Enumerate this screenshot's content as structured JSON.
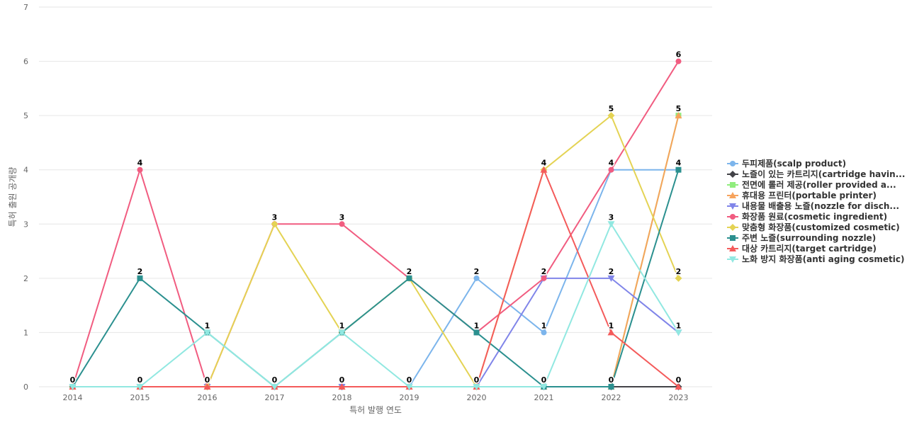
{
  "chart_data": {
    "type": "line",
    "xlabel": "특허 발행 연도",
    "ylabel": "특허 출원 공개량",
    "ylim": [
      0,
      7
    ],
    "yticks": [
      0,
      1,
      2,
      3,
      4,
      5,
      6,
      7
    ],
    "grid": true,
    "legend_position": "right",
    "categories": [
      "2014",
      "2015",
      "2016",
      "2017",
      "2018",
      "2019",
      "2020",
      "2021",
      "2022",
      "2023"
    ],
    "series": [
      {
        "name": "두피제품(scalp product)",
        "color": "#7cb5ec",
        "marker": "circle",
        "values": [
          0,
          0,
          0,
          0,
          0,
          0,
          2,
          1,
          4,
          4
        ]
      },
      {
        "name": "노즐이 있는 카트리지(cartridge havin...",
        "color": "#434348",
        "marker": "diamond",
        "values": [
          0,
          0,
          0,
          0,
          0,
          0,
          0,
          0,
          0,
          0
        ]
      },
      {
        "name": "전면에 롤러 제공(roller provided a...",
        "color": "#90ed7d",
        "marker": "square",
        "values": [
          0,
          0,
          0,
          0,
          0,
          0,
          0,
          0,
          0,
          5
        ]
      },
      {
        "name": "휴대용 프린터(portable printer)",
        "color": "#f7a35c",
        "marker": "triangle",
        "values": [
          0,
          0,
          0,
          0,
          0,
          0,
          0,
          0,
          0,
          5
        ]
      },
      {
        "name": "내용물 배출용 노즐(nozzle for disch...",
        "color": "#8085e9",
        "marker": "triangle-down",
        "values": [
          0,
          0,
          0,
          0,
          0,
          0,
          0,
          2,
          2,
          1
        ]
      },
      {
        "name": "화장품 원료(cosmetic ingredient)",
        "color": "#f15c80",
        "marker": "circle",
        "values": [
          0,
          4,
          0,
          3,
          3,
          2,
          1,
          2,
          4,
          6
        ]
      },
      {
        "name": "맞춤형 화장품(customized cosmetic)",
        "color": "#e4d354",
        "marker": "diamond",
        "values": [
          0,
          0,
          0,
          3,
          1,
          2,
          0,
          4,
          5,
          2
        ]
      },
      {
        "name": "주변 노즐(surrounding nozzle)",
        "color": "#2b908f",
        "marker": "square",
        "values": [
          0,
          2,
          1,
          0,
          1,
          2,
          1,
          0,
          0,
          4
        ]
      },
      {
        "name": "대상 카트리지(target cartridge)",
        "color": "#f45b5b",
        "marker": "triangle",
        "values": [
          0,
          0,
          0,
          0,
          0,
          0,
          0,
          4,
          1,
          0
        ]
      },
      {
        "name": "노화 방지 화장품(anti aging cosmetic)",
        "color": "#91e8e1",
        "marker": "triangle-down",
        "values": [
          0,
          0,
          1,
          0,
          1,
          0,
          0,
          0,
          3,
          1
        ]
      }
    ],
    "data_labels": [
      {
        "x": "2014",
        "y": 0,
        "text": "0"
      },
      {
        "x": "2015",
        "y": 4,
        "text": "4"
      },
      {
        "x": "2015",
        "y": 2,
        "text": "2"
      },
      {
        "x": "2015",
        "y": 0,
        "text": "0"
      },
      {
        "x": "2016",
        "y": 1,
        "text": "1"
      },
      {
        "x": "2016",
        "y": 0,
        "text": "0"
      },
      {
        "x": "2017",
        "y": 3,
        "text": "3"
      },
      {
        "x": "2017",
        "y": 0,
        "text": "0"
      },
      {
        "x": "2018",
        "y": 3,
        "text": "3"
      },
      {
        "x": "2018",
        "y": 1,
        "text": "1"
      },
      {
        "x": "2018",
        "y": 0,
        "text": "0"
      },
      {
        "x": "2019",
        "y": 2,
        "text": "2"
      },
      {
        "x": "2019",
        "y": 0,
        "text": "0"
      },
      {
        "x": "2020",
        "y": 2,
        "text": "2"
      },
      {
        "x": "2020",
        "y": 1,
        "text": "1"
      },
      {
        "x": "2020",
        "y": 0,
        "text": "0"
      },
      {
        "x": "2021",
        "y": 4,
        "text": "4"
      },
      {
        "x": "2021",
        "y": 2,
        "text": "2"
      },
      {
        "x": "2021",
        "y": 1,
        "text": "1"
      },
      {
        "x": "2021",
        "y": 0,
        "text": "0"
      },
      {
        "x": "2022",
        "y": 5,
        "text": "5"
      },
      {
        "x": "2022",
        "y": 4,
        "text": "4"
      },
      {
        "x": "2022",
        "y": 3,
        "text": "3"
      },
      {
        "x": "2022",
        "y": 2,
        "text": "2"
      },
      {
        "x": "2022",
        "y": 1,
        "text": "1"
      },
      {
        "x": "2022",
        "y": 0,
        "text": "0"
      },
      {
        "x": "2023",
        "y": 6,
        "text": "6"
      },
      {
        "x": "2023",
        "y": 5,
        "text": "5"
      },
      {
        "x": "2023",
        "y": 4,
        "text": "4"
      },
      {
        "x": "2023",
        "y": 2,
        "text": "2"
      },
      {
        "x": "2023",
        "y": 1,
        "text": "1"
      },
      {
        "x": "2023",
        "y": 0,
        "text": "0"
      }
    ]
  }
}
